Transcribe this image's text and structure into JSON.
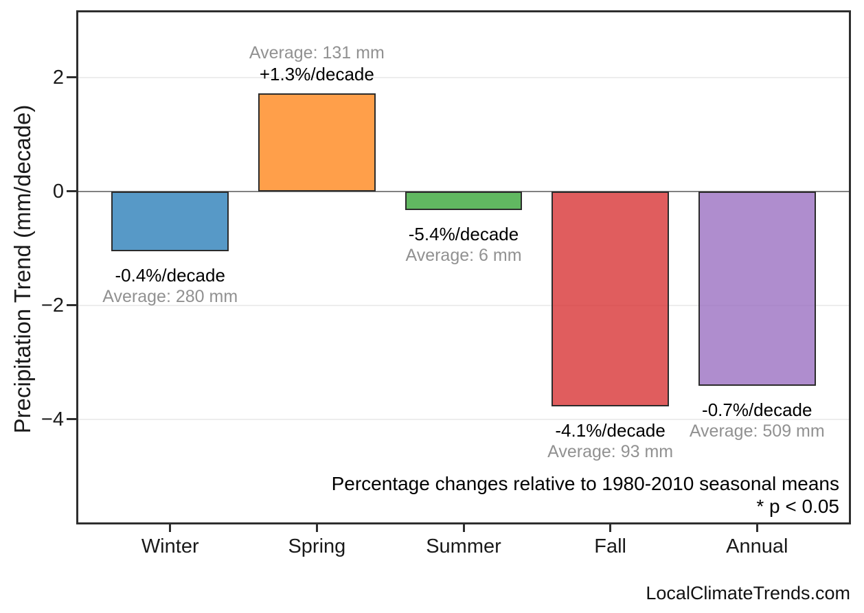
{
  "figure": {
    "footer": "LocalClimateTrends.com"
  },
  "chart_data": {
    "type": "bar",
    "title": "",
    "xlabel": "",
    "ylabel": "Precipitation Trend (mm/decade)",
    "categories": [
      "Winter",
      "Spring",
      "Summer",
      "Fall",
      "Annual"
    ],
    "values": [
      -1.05,
      1.72,
      -0.33,
      -3.78,
      -3.42
    ],
    "bar_labels": [
      {
        "percent": "-0.4%/decade",
        "average": "Average: 280 mm",
        "position": "below"
      },
      {
        "percent": "+1.3%/decade",
        "average": "Average: 131 mm",
        "position": "above"
      },
      {
        "percent": "-5.4%/decade",
        "average": "Average: 6 mm",
        "position": "below"
      },
      {
        "percent": "-4.1%/decade",
        "average": "Average: 93 mm",
        "position": "below"
      },
      {
        "percent": "-0.7%/decade",
        "average": "Average: 509 mm",
        "position": "below"
      }
    ],
    "bar_colors": [
      "#1f77b4",
      "#ff7f0e",
      "#2ca02c",
      "#d62728",
      "#9467bd"
    ],
    "bar_alpha": 0.75,
    "bar_edge_color": "#2b2b2b",
    "yticks": [
      2,
      0,
      -2,
      -4
    ],
    "ytick_labels": [
      "2",
      "0",
      "−2",
      "−4"
    ],
    "ylim": [
      -5.85,
      3.18
    ],
    "xlim": [
      -0.64,
      4.64
    ],
    "bar_width_ratio": 0.8,
    "grid": true,
    "legend": "none",
    "zero_line_color": "#808080",
    "annotations": [
      "Percentage changes relative to 1980-2010 seasonal means",
      "* p < 0.05"
    ]
  }
}
